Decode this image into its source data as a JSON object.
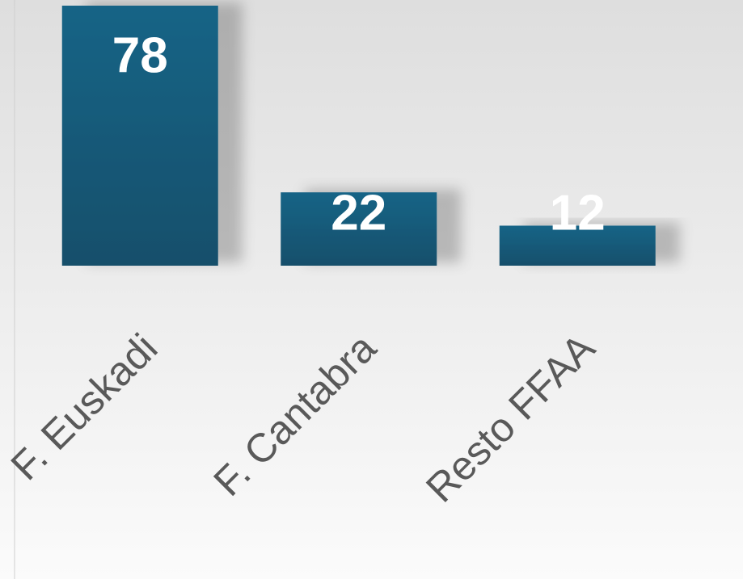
{
  "chart_data": {
    "type": "bar",
    "categories": [
      "F. Euskadi",
      "F. Cantabra",
      "Resto FFAA"
    ],
    "values": [
      78,
      22,
      12
    ],
    "color": "#165b7a"
  }
}
